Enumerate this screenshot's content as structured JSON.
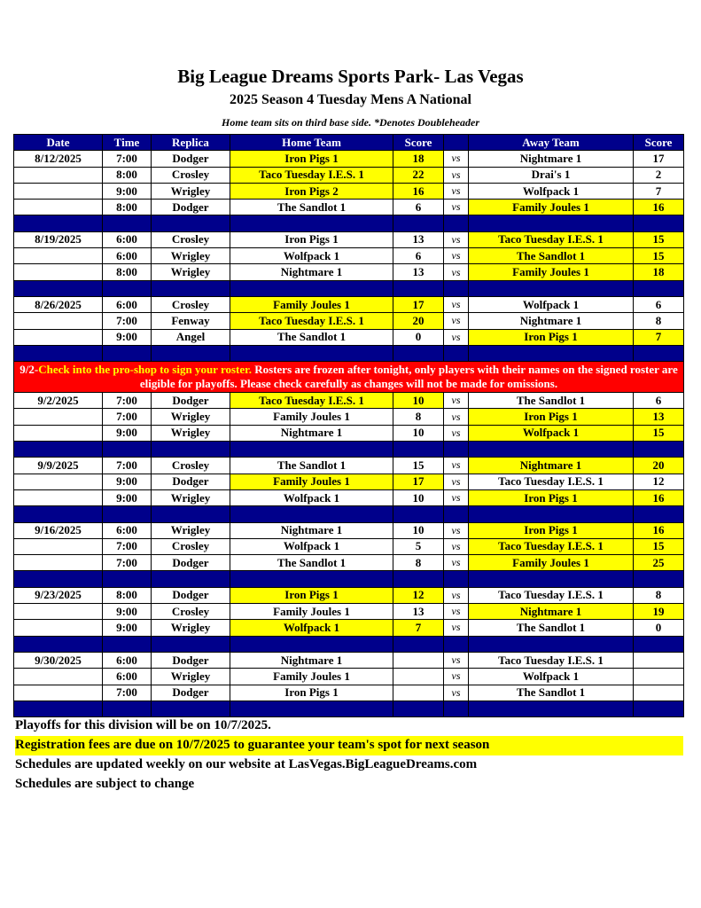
{
  "header": {
    "title": "Big League Dreams Sports Park- Las Vegas",
    "subtitle": "2025 Season 4 Tuesday Mens A National",
    "note": "Home team sits on third base side.  *Denotes Doubleheader"
  },
  "table": {
    "columns": [
      "Date",
      "Time",
      "Replica",
      "Home Team",
      "Score",
      "",
      "Away Team",
      "Score"
    ],
    "vs_label": "vs",
    "weeks": [
      {
        "date": "8/12/2025",
        "games": [
          [
            "7:00",
            "Dodger",
            "Iron Pigs 1",
            18,
            "Nightmare 1",
            17
          ],
          [
            "8:00",
            "Crosley",
            "Taco Tuesday I.E.S. 1",
            22,
            "Drai's 1",
            2
          ],
          [
            "9:00",
            "Wrigley",
            "Iron Pigs 2",
            16,
            "Wolfpack 1",
            7
          ],
          [
            "8:00",
            "Dodger",
            "The Sandlot 1",
            6,
            "Family Joules 1",
            16
          ]
        ]
      },
      {
        "date": "8/19/2025",
        "games": [
          [
            "6:00",
            "Crosley",
            "Iron Pigs 1",
            13,
            "Taco Tuesday I.E.S. 1",
            15
          ],
          [
            "6:00",
            "Wrigley",
            "Wolfpack 1",
            6,
            "The Sandlot 1",
            15
          ],
          [
            "8:00",
            "Wrigley",
            "Nightmare 1",
            13,
            "Family Joules 1",
            18
          ]
        ]
      },
      {
        "date": "8/26/2025",
        "games": [
          [
            "6:00",
            "Crosley",
            "Family Joules 1",
            17,
            "Wolfpack 1",
            6
          ],
          [
            "7:00",
            "Fenway",
            "Taco Tuesday I.E.S. 1",
            20,
            "Nightmare 1",
            8
          ],
          [
            "9:00",
            "Angel",
            "The Sandlot 1",
            0,
            "Iron Pigs 1",
            7
          ]
        ]
      },
      {
        "date": "9/2/2025",
        "games": [
          [
            "7:00",
            "Dodger",
            "Taco Tuesday I.E.S. 1",
            10,
            "The Sandlot 1",
            6
          ],
          [
            "7:00",
            "Wrigley",
            "Family Joules 1",
            8,
            "Iron Pigs 1",
            13
          ],
          [
            "9:00",
            "Wrigley",
            "Nightmare 1",
            10,
            "Wolfpack 1",
            15
          ]
        ]
      },
      {
        "date": "9/9/2025",
        "games": [
          [
            "7:00",
            "Crosley",
            "The Sandlot 1",
            15,
            "Nightmare 1",
            20
          ],
          [
            "9:00",
            "Dodger",
            "Family Joules 1",
            17,
            "Taco Tuesday I.E.S. 1",
            12
          ],
          [
            "9:00",
            "Wrigley",
            "Wolfpack 1",
            10,
            "Iron Pigs 1",
            16
          ]
        ]
      },
      {
        "date": "9/16/2025",
        "games": [
          [
            "6:00",
            "Wrigley",
            "Nightmare 1",
            10,
            "Iron Pigs 1",
            16
          ],
          [
            "7:00",
            "Crosley",
            "Wolfpack 1",
            5,
            "Taco Tuesday I.E.S. 1",
            15
          ],
          [
            "7:00",
            "Dodger",
            "The Sandlot 1",
            8,
            "Family Joules 1",
            25
          ]
        ]
      },
      {
        "date": "9/23/2025",
        "games": [
          [
            "8:00",
            "Dodger",
            "Iron Pigs 1",
            12,
            "Taco Tuesday I.E.S. 1",
            8
          ],
          [
            "9:00",
            "Crosley",
            "Family Joules 1",
            13,
            "Nightmare 1",
            19
          ],
          [
            "9:00",
            "Wrigley",
            "Wolfpack 1",
            7,
            "The Sandlot 1",
            0
          ]
        ]
      },
      {
        "date": "9/30/2025",
        "games": [
          [
            "6:00",
            "Dodger",
            "Nightmare 1",
            null,
            "Taco Tuesday I.E.S. 1",
            null
          ],
          [
            "6:00",
            "Wrigley",
            "Family Joules 1",
            null,
            "Wolfpack 1",
            null
          ],
          [
            "7:00",
            "Dodger",
            "Iron Pigs 1",
            null,
            "The Sandlot 1",
            null
          ]
        ]
      }
    ]
  },
  "notice": {
    "prefix": "9/2-",
    "highlight": "Check into the pro-shop to sign your roster.",
    "text": " Rosters are frozen after tonight, only players with their names on the signed roster are eligible for playoffs. Please check carefully as changes will not be made for omissions."
  },
  "footer": [
    "Playoffs for this division will be on 10/7/2025.",
    "Registration fees are due on 10/7/2025 to guarantee your team's spot for next season",
    "Schedules are updated weekly on our website at LasVegas.BigLeagueDreams.com",
    "Schedules are subject to change"
  ]
}
